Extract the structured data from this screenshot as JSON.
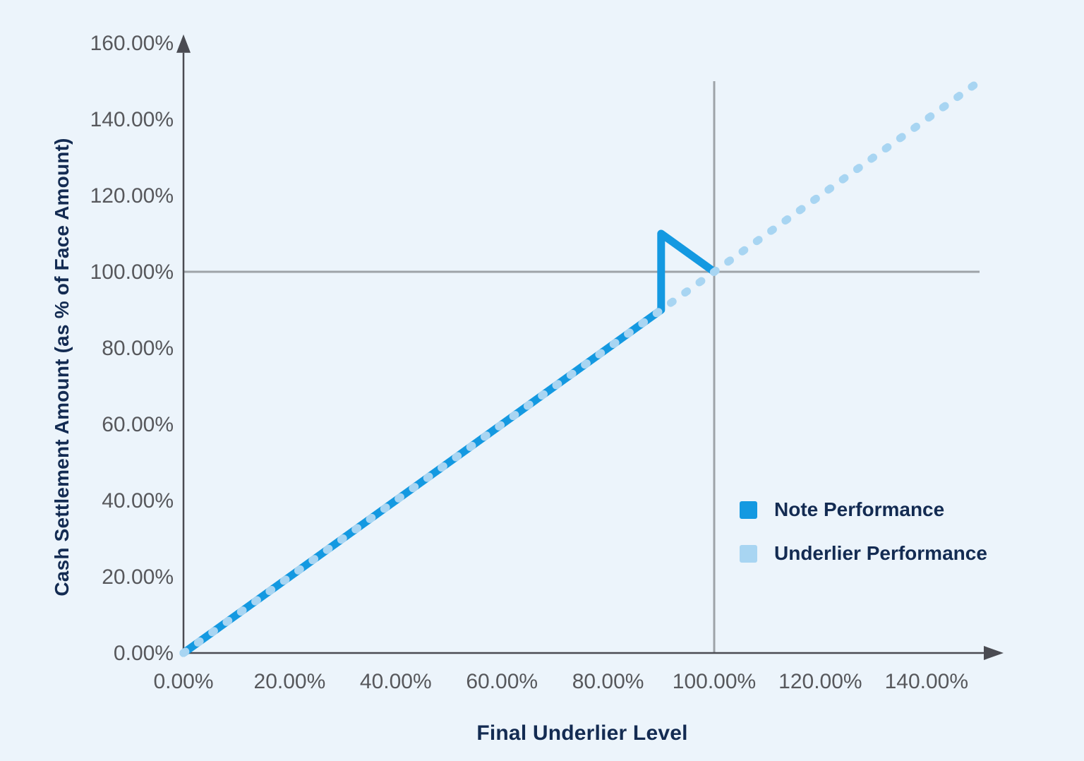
{
  "chart_data": {
    "type": "line",
    "title": "",
    "xlabel": "Final Underlier Level",
    "ylabel": "Cash Settlement Amount (as % of Face Amount)",
    "xlim": [
      0,
      150
    ],
    "ylim": [
      0,
      158
    ],
    "grid": "off",
    "legend_position": "right-middle",
    "x_ticks": {
      "values": [
        0,
        20,
        40,
        60,
        80,
        100,
        120,
        140
      ],
      "labels": [
        "0.00%",
        "20.00%",
        "40.00%",
        "60.00%",
        "80.00%",
        "100.00%",
        "120.00%",
        "140.00%"
      ]
    },
    "y_ticks": {
      "values": [
        0,
        20,
        40,
        60,
        80,
        100,
        120,
        140,
        160
      ],
      "labels": [
        "0.00%",
        "20.00%",
        "40.00%",
        "60.00%",
        "80.00%",
        "100.00%",
        "120.00%",
        "140.00%",
        "160.00%"
      ]
    },
    "reference_lines": [
      {
        "orientation": "horizontal",
        "value": 100,
        "span": [
          0,
          150
        ]
      },
      {
        "orientation": "vertical",
        "value": 100,
        "span": [
          0,
          150
        ]
      }
    ],
    "series": [
      {
        "name": "Note Performance",
        "color": "#1499E1",
        "style": "solid",
        "points": [
          [
            0,
            0
          ],
          [
            90,
            90
          ],
          [
            90,
            110
          ],
          [
            100,
            100
          ]
        ]
      },
      {
        "name": "Underlier Performance",
        "color": "#A8D5F2",
        "style": "dotted",
        "points": [
          [
            0,
            0
          ],
          [
            149,
            149
          ]
        ]
      }
    ],
    "colors": {
      "background": "#ECF4FB",
      "axis": "#4A4B52",
      "tick_text": "#57585C",
      "title_text": "#132B52",
      "reference_line": "#9EA3A8"
    }
  }
}
